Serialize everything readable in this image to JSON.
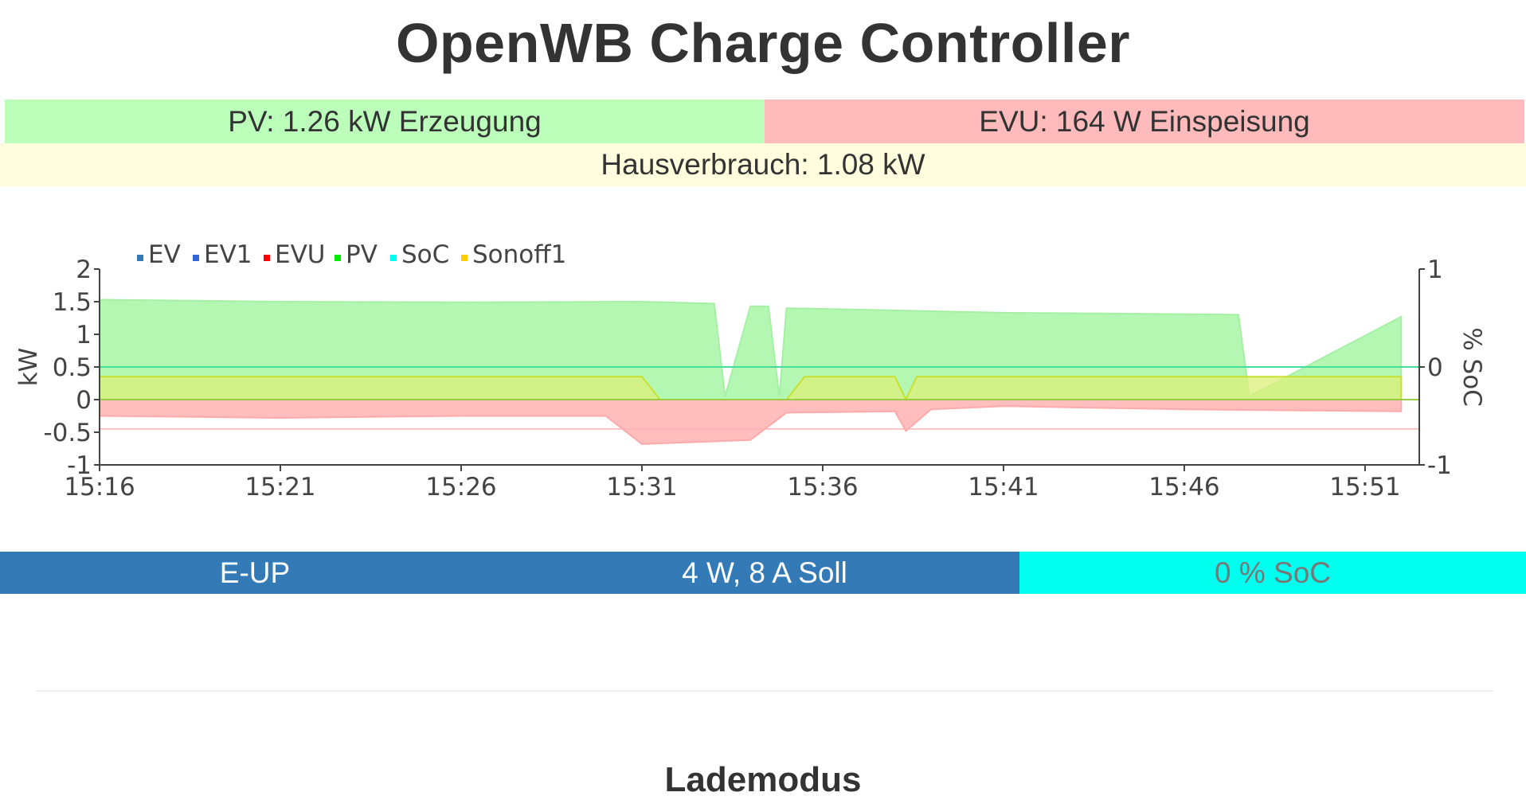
{
  "header": {
    "title": "OpenWB Charge Controller"
  },
  "status": {
    "pv": "PV: 1.26 kW Erzeugung",
    "evu": "EVU: 164 W Einspeisung",
    "house": "Hausverbrauch: 1.08 kW"
  },
  "colors": {
    "pv_bg": "#bbffbb",
    "evu_bg": "#ffbbbb",
    "house_bg": "#fffddd",
    "ev_bar": "#337ab7",
    "soc_bar": "#00ffee"
  },
  "chart_data": {
    "type": "area",
    "ylabel": "kW",
    "ylabel_right": "% SoC",
    "ylim": [
      -1,
      2
    ],
    "ylim_right": [
      -1,
      1
    ],
    "yticks": [
      "2",
      "1.5",
      "1",
      "0.5",
      "0",
      "-0.5",
      "-1"
    ],
    "yticks_right": [
      "1",
      "0",
      "-1"
    ],
    "xticks": [
      "15:16",
      "15:21",
      "15:26",
      "15:31",
      "15:36",
      "15:41",
      "15:46",
      "15:51"
    ],
    "grid": false,
    "legend_position": "top-left",
    "legend": [
      {
        "name": "EV",
        "color": "#337ab7"
      },
      {
        "name": "EV1",
        "color": "#3366dd"
      },
      {
        "name": "EVU",
        "color": "#ff0000"
      },
      {
        "name": "PV",
        "color": "#00ee00"
      },
      {
        "name": "SoC",
        "color": "#00ffee"
      },
      {
        "name": "Sonoff1",
        "color": "#ffcc00"
      }
    ],
    "series": [
      {
        "name": "PV",
        "x": [
          "15:16",
          "15:21",
          "15:26",
          "15:31",
          "15:33",
          "15:33.3",
          "15:34",
          "15:34.5",
          "15:34.8",
          "15:35",
          "15:36",
          "15:41",
          "15:46",
          "15:47.5",
          "15:47.8",
          "15:52"
        ],
        "values": [
          1.53,
          1.5,
          1.49,
          1.5,
          1.47,
          0.05,
          1.43,
          1.43,
          0.05,
          1.4,
          1.39,
          1.33,
          1.31,
          1.3,
          0.05,
          1.27
        ]
      },
      {
        "name": "EVU",
        "x": [
          "15:16",
          "15:21",
          "15:26",
          "15:30",
          "15:31",
          "15:34",
          "15:35",
          "15:38",
          "15:38.3",
          "15:39",
          "15:41",
          "15:46",
          "15:52"
        ],
        "values": [
          -0.25,
          -0.28,
          -0.25,
          -0.25,
          -0.68,
          -0.62,
          -0.2,
          -0.18,
          -0.48,
          -0.15,
          -0.1,
          -0.15,
          -0.18
        ]
      },
      {
        "name": "Sonoff1",
        "x": [
          "15:16",
          "15:31",
          "15:31.5",
          "15:35",
          "15:35.5",
          "15:38",
          "15:38.3",
          "15:38.6",
          "15:52"
        ],
        "values": [
          0.35,
          0.35,
          0.0,
          0.0,
          0.35,
          0.35,
          0.0,
          0.35,
          0.35
        ]
      }
    ]
  },
  "ev": {
    "name": "E-UP",
    "power": "4 W, 8 A Soll",
    "soc": "0 % SoC"
  },
  "section": {
    "title": "Lademodus"
  }
}
